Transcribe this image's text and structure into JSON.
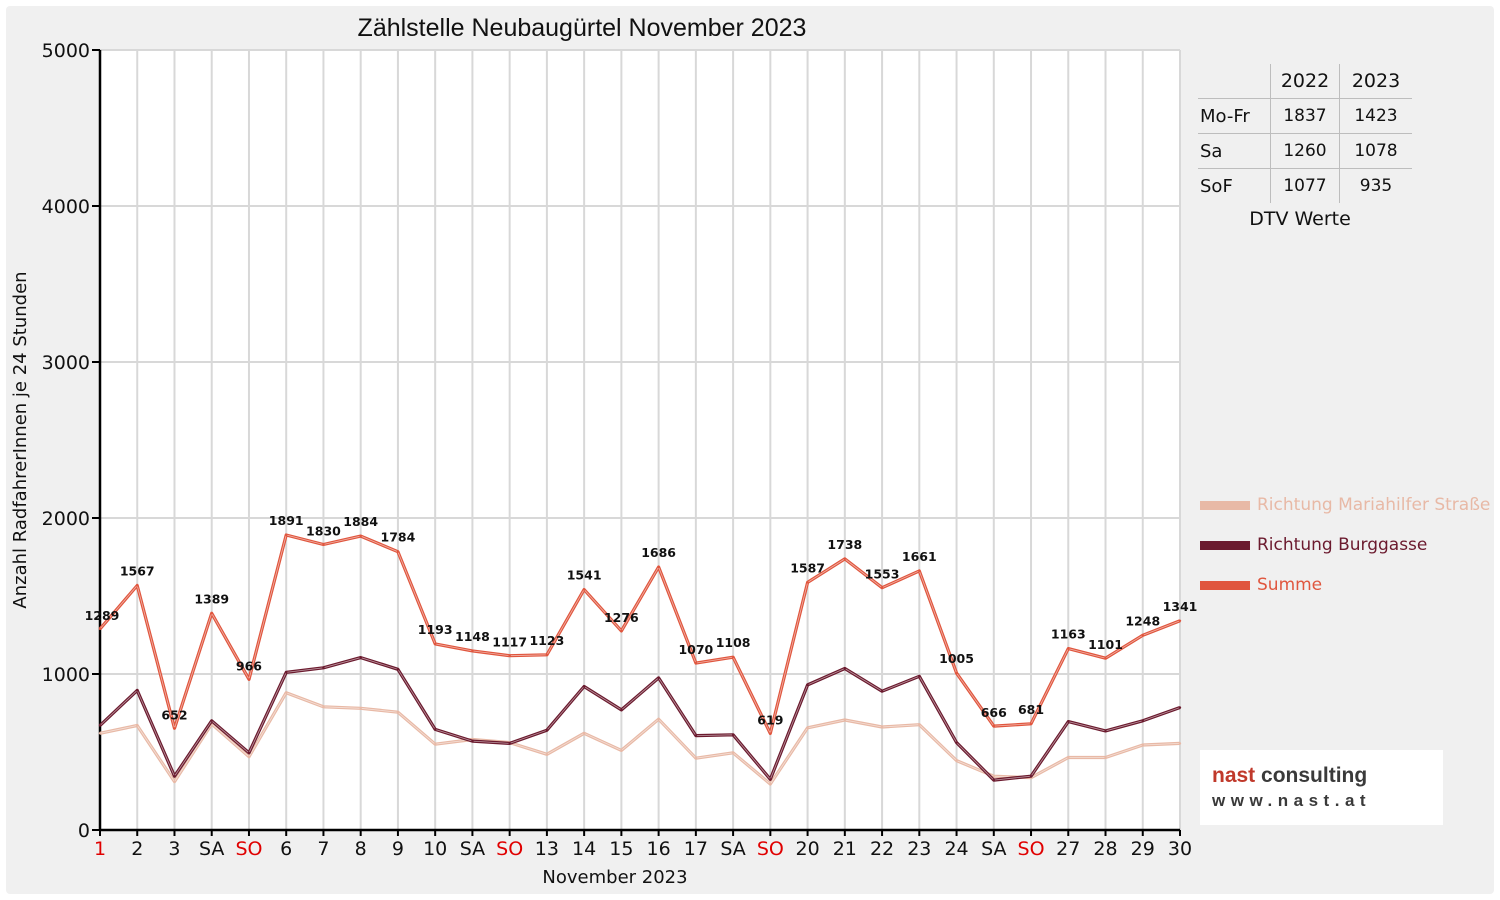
{
  "chart_data": {
    "type": "line",
    "title": "Zählstelle Neubaugürtel November 2023",
    "xlabel": "November 2023",
    "ylabel": "Anzahl RadfahrerInnen je 24 Stunden",
    "ylim": [
      0,
      5000
    ],
    "yticks": [
      "0",
      "1000",
      "2000",
      "3000",
      "4000",
      "5000"
    ],
    "grid": true,
    "legend_position": "right",
    "categories": [
      "1",
      "2",
      "3",
      "SA",
      "SO",
      "6",
      "7",
      "8",
      "9",
      "10",
      "SA",
      "SO",
      "13",
      "14",
      "15",
      "16",
      "17",
      "SA",
      "SO",
      "20",
      "21",
      "22",
      "23",
      "24",
      "SA",
      "SO",
      "27",
      "28",
      "29",
      "30"
    ],
    "red_categories": [
      0,
      4,
      11,
      18,
      25
    ],
    "series": [
      {
        "name": "Richtung Mariahilfer Straße",
        "color": "#e8b9a6",
        "values": [
          620,
          670,
          310,
          680,
          470,
          880,
          790,
          780,
          755,
          550,
          580,
          560,
          485,
          620,
          510,
          710,
          460,
          495,
          295,
          655,
          705,
          660,
          675,
          445,
          345,
          335,
          465,
          465,
          545,
          555
        ]
      },
      {
        "name": "Richtung Burggasse",
        "color": "#6b1a2e",
        "values": [
          670,
          895,
          345,
          700,
          495,
          1010,
          1040,
          1105,
          1030,
          645,
          570,
          555,
          640,
          920,
          770,
          975,
          605,
          610,
          325,
          930,
          1035,
          890,
          985,
          560,
          320,
          345,
          695,
          635,
          700,
          785
        ]
      },
      {
        "name": "Summe",
        "color": "#e0563e",
        "values": [
          1289,
          1567,
          652,
          1389,
          966,
          1891,
          1830,
          1884,
          1784,
          1193,
          1148,
          1117,
          1123,
          1541,
          1276,
          1686,
          1070,
          1108,
          619,
          1587,
          1738,
          1553,
          1661,
          1005,
          666,
          681,
          1163,
          1101,
          1248,
          1341
        ]
      }
    ],
    "data_labels": [
      "1289",
      "1567",
      "652",
      "1389",
      "966",
      "1891",
      "1830",
      "1884",
      "1784",
      "1193",
      "1148",
      "1117",
      "1123",
      "1541",
      "1276",
      "1686",
      "1070",
      "1108",
      "619",
      "1587",
      "1738",
      "1553",
      "1661",
      "1005",
      "666",
      "681",
      "1163",
      "1101",
      "1248",
      "1341"
    ]
  },
  "colors": {
    "weekend_red": "#e00000",
    "axis": "#000000",
    "grid": "#d8d8d8",
    "background": "#f0f0f0"
  },
  "dtv_table": {
    "headers": [
      "2022",
      "2023"
    ],
    "rows": [
      {
        "label": "Mo-Fr",
        "v2022": "1837",
        "v2023": "1423"
      },
      {
        "label": "Sa",
        "v2022": "1260",
        "v2023": "1078"
      },
      {
        "label": "SoF",
        "v2022": "1077",
        "v2023": "935"
      }
    ],
    "caption": "DTV Werte"
  },
  "legend": [
    {
      "label": "Richtung Mariahilfer Straße",
      "color": "#e8b9a6"
    },
    {
      "label": "Richtung Burggasse",
      "color": "#6b1a2e"
    },
    {
      "label": "Summe",
      "color": "#e0563e"
    }
  ],
  "logo": {
    "word1": "nast",
    "word2": "consulting",
    "url": "www.nast.at"
  }
}
